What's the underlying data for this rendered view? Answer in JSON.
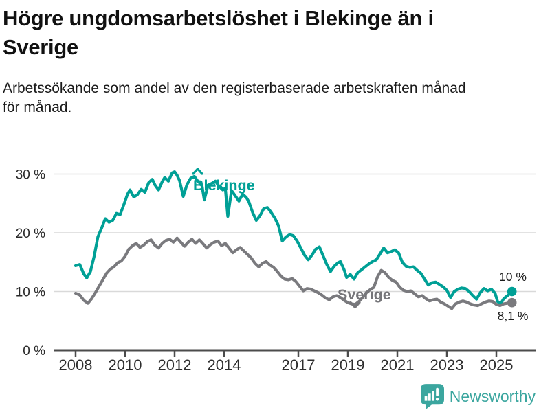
{
  "chart_data": {
    "type": "line",
    "title": "Högre ungdomsarbetslöshet i Blekinge än i Sverige",
    "subtitle": "Arbetssökande som andel av den registerbaserade arbetskraften månad för månad.",
    "unit": "%",
    "x_axis": {
      "ticks": [
        2008,
        2010,
        2012,
        2014,
        2017,
        2019,
        2021,
        2023,
        2025
      ],
      "range": [
        2007.1,
        2026.6
      ]
    },
    "y_axis": {
      "ticks": [
        {
          "value": 0,
          "label": "0 %"
        },
        {
          "value": 10,
          "label": "10 %"
        },
        {
          "value": 20,
          "label": "20 %"
        },
        {
          "value": 30,
          "label": "30 %"
        }
      ],
      "range": [
        0,
        32
      ],
      "grid": true
    },
    "legend_position": "inline-labels",
    "series": [
      {
        "name": "Blekinge",
        "color": "#00a096",
        "end_label": "10 %",
        "end_value": 10.0,
        "points": [
          [
            2008.0,
            14.4
          ],
          [
            2008.17,
            14.6
          ],
          [
            2008.33,
            13.0
          ],
          [
            2008.45,
            12.3
          ],
          [
            2008.6,
            13.4
          ],
          [
            2008.75,
            16.0
          ],
          [
            2008.9,
            19.3
          ],
          [
            2009.05,
            20.8
          ],
          [
            2009.2,
            22.4
          ],
          [
            2009.35,
            21.8
          ],
          [
            2009.5,
            22.1
          ],
          [
            2009.65,
            23.3
          ],
          [
            2009.8,
            23.1
          ],
          [
            2009.95,
            24.8
          ],
          [
            2010.1,
            26.6
          ],
          [
            2010.2,
            27.3
          ],
          [
            2010.35,
            26.1
          ],
          [
            2010.5,
            26.5
          ],
          [
            2010.65,
            27.4
          ],
          [
            2010.8,
            26.9
          ],
          [
            2010.95,
            28.5
          ],
          [
            2011.1,
            29.1
          ],
          [
            2011.2,
            28.2
          ],
          [
            2011.35,
            27.3
          ],
          [
            2011.5,
            28.7
          ],
          [
            2011.6,
            29.4
          ],
          [
            2011.75,
            28.8
          ],
          [
            2011.9,
            30.2
          ],
          [
            2012.0,
            30.4
          ],
          [
            2012.1,
            29.8
          ],
          [
            2012.2,
            28.9
          ],
          [
            2012.35,
            26.2
          ],
          [
            2012.5,
            28.2
          ],
          [
            2012.65,
            29.3
          ],
          [
            2012.8,
            29.6
          ],
          [
            2012.95,
            28.7
          ],
          [
            2013.1,
            28.2
          ],
          [
            2013.2,
            25.6
          ],
          [
            2013.35,
            28.1
          ],
          [
            2013.5,
            28.4
          ],
          [
            2013.65,
            28.8
          ],
          [
            2013.8,
            27.9
          ],
          [
            2013.95,
            27.3
          ],
          [
            2014.05,
            27.6
          ],
          [
            2014.15,
            22.8
          ],
          [
            2014.3,
            27.2
          ],
          [
            2014.45,
            26.3
          ],
          [
            2014.6,
            25.4
          ],
          [
            2014.75,
            26.6
          ],
          [
            2014.9,
            26.0
          ],
          [
            2015.0,
            25.3
          ],
          [
            2015.15,
            23.5
          ],
          [
            2015.3,
            22.1
          ],
          [
            2015.45,
            22.9
          ],
          [
            2015.6,
            24.1
          ],
          [
            2015.75,
            24.3
          ],
          [
            2015.9,
            23.5
          ],
          [
            2016.05,
            22.5
          ],
          [
            2016.2,
            21.2
          ],
          [
            2016.35,
            18.6
          ],
          [
            2016.5,
            19.3
          ],
          [
            2016.65,
            19.7
          ],
          [
            2016.8,
            19.5
          ],
          [
            2016.95,
            18.6
          ],
          [
            2017.1,
            17.4
          ],
          [
            2017.25,
            16.2
          ],
          [
            2017.4,
            15.4
          ],
          [
            2017.55,
            16.2
          ],
          [
            2017.7,
            17.2
          ],
          [
            2017.85,
            17.6
          ],
          [
            2018.0,
            16.1
          ],
          [
            2018.15,
            14.6
          ],
          [
            2018.3,
            13.4
          ],
          [
            2018.45,
            14.3
          ],
          [
            2018.6,
            14.9
          ],
          [
            2018.7,
            15.1
          ],
          [
            2018.85,
            13.7
          ],
          [
            2018.95,
            12.4
          ],
          [
            2019.1,
            12.9
          ],
          [
            2019.25,
            12.1
          ],
          [
            2019.4,
            13.2
          ],
          [
            2019.55,
            13.7
          ],
          [
            2019.7,
            14.2
          ],
          [
            2019.85,
            14.7
          ],
          [
            2020.0,
            15.1
          ],
          [
            2020.15,
            15.4
          ],
          [
            2020.3,
            16.4
          ],
          [
            2020.45,
            17.4
          ],
          [
            2020.6,
            16.6
          ],
          [
            2020.75,
            16.8
          ],
          [
            2020.9,
            17.1
          ],
          [
            2021.05,
            16.6
          ],
          [
            2021.2,
            15.0
          ],
          [
            2021.35,
            14.3
          ],
          [
            2021.5,
            14.1
          ],
          [
            2021.65,
            14.2
          ],
          [
            2021.8,
            13.6
          ],
          [
            2021.95,
            13.1
          ],
          [
            2022.1,
            12.1
          ],
          [
            2022.25,
            11.1
          ],
          [
            2022.4,
            11.5
          ],
          [
            2022.55,
            11.6
          ],
          [
            2022.7,
            11.2
          ],
          [
            2022.85,
            10.8
          ],
          [
            2023.0,
            10.2
          ],
          [
            2023.15,
            9.0
          ],
          [
            2023.3,
            10.0
          ],
          [
            2023.45,
            10.4
          ],
          [
            2023.6,
            10.6
          ],
          [
            2023.75,
            10.5
          ],
          [
            2023.9,
            10.0
          ],
          [
            2024.05,
            9.3
          ],
          [
            2024.2,
            8.7
          ],
          [
            2024.35,
            9.8
          ],
          [
            2024.5,
            10.5
          ],
          [
            2024.65,
            10.1
          ],
          [
            2024.8,
            10.4
          ],
          [
            2024.95,
            9.7
          ],
          [
            2025.05,
            8.3
          ],
          [
            2025.17,
            7.9
          ],
          [
            2025.3,
            8.8
          ],
          [
            2025.45,
            9.3
          ],
          [
            2025.63,
            10.0
          ]
        ]
      },
      {
        "name": "Sverige",
        "color": "#7a7a7e",
        "end_label": "8,1 %",
        "end_value": 8.1,
        "points": [
          [
            2008.0,
            9.7
          ],
          [
            2008.17,
            9.4
          ],
          [
            2008.33,
            8.5
          ],
          [
            2008.5,
            8.0
          ],
          [
            2008.65,
            8.8
          ],
          [
            2008.8,
            9.8
          ],
          [
            2008.95,
            10.9
          ],
          [
            2009.1,
            12.0
          ],
          [
            2009.25,
            13.1
          ],
          [
            2009.4,
            13.8
          ],
          [
            2009.55,
            14.2
          ],
          [
            2009.7,
            14.9
          ],
          [
            2009.85,
            15.2
          ],
          [
            2010.0,
            16.0
          ],
          [
            2010.15,
            17.2
          ],
          [
            2010.3,
            17.8
          ],
          [
            2010.45,
            18.2
          ],
          [
            2010.6,
            17.5
          ],
          [
            2010.75,
            17.9
          ],
          [
            2010.9,
            18.5
          ],
          [
            2011.05,
            18.8
          ],
          [
            2011.2,
            17.9
          ],
          [
            2011.35,
            17.4
          ],
          [
            2011.5,
            18.2
          ],
          [
            2011.65,
            18.7
          ],
          [
            2011.8,
            18.9
          ],
          [
            2011.95,
            18.4
          ],
          [
            2012.1,
            19.1
          ],
          [
            2012.25,
            18.4
          ],
          [
            2012.4,
            17.7
          ],
          [
            2012.55,
            18.4
          ],
          [
            2012.7,
            18.9
          ],
          [
            2012.85,
            18.2
          ],
          [
            2013.0,
            18.8
          ],
          [
            2013.15,
            18.1
          ],
          [
            2013.3,
            17.4
          ],
          [
            2013.45,
            18.0
          ],
          [
            2013.6,
            18.4
          ],
          [
            2013.75,
            18.6
          ],
          [
            2013.9,
            17.8
          ],
          [
            2014.05,
            18.2
          ],
          [
            2014.2,
            17.4
          ],
          [
            2014.35,
            16.6
          ],
          [
            2014.5,
            17.1
          ],
          [
            2014.65,
            17.5
          ],
          [
            2014.8,
            16.9
          ],
          [
            2014.95,
            16.3
          ],
          [
            2015.1,
            15.7
          ],
          [
            2015.25,
            14.8
          ],
          [
            2015.4,
            14.2
          ],
          [
            2015.55,
            14.8
          ],
          [
            2015.7,
            15.1
          ],
          [
            2015.85,
            14.5
          ],
          [
            2016.0,
            14.1
          ],
          [
            2016.15,
            13.4
          ],
          [
            2016.3,
            12.6
          ],
          [
            2016.45,
            12.1
          ],
          [
            2016.6,
            12.0
          ],
          [
            2016.75,
            12.2
          ],
          [
            2016.9,
            11.7
          ],
          [
            2017.05,
            10.9
          ],
          [
            2017.2,
            10.1
          ],
          [
            2017.35,
            10.5
          ],
          [
            2017.5,
            10.4
          ],
          [
            2017.65,
            10.1
          ],
          [
            2017.8,
            9.8
          ],
          [
            2017.95,
            9.4
          ],
          [
            2018.1,
            8.9
          ],
          [
            2018.25,
            8.6
          ],
          [
            2018.4,
            9.1
          ],
          [
            2018.55,
            9.3
          ],
          [
            2018.7,
            9.0
          ],
          [
            2018.85,
            8.5
          ],
          [
            2019.0,
            8.1
          ],
          [
            2019.15,
            7.9
          ],
          [
            2019.3,
            7.8
          ],
          [
            2019.45,
            8.3
          ],
          [
            2019.6,
            9.0
          ],
          [
            2019.75,
            9.8
          ],
          [
            2019.9,
            10.3
          ],
          [
            2020.05,
            10.7
          ],
          [
            2020.2,
            12.5
          ],
          [
            2020.35,
            13.6
          ],
          [
            2020.5,
            13.2
          ],
          [
            2020.65,
            12.4
          ],
          [
            2020.8,
            11.9
          ],
          [
            2020.95,
            11.6
          ],
          [
            2021.1,
            10.7
          ],
          [
            2021.25,
            10.2
          ],
          [
            2021.4,
            10.0
          ],
          [
            2021.55,
            10.1
          ],
          [
            2021.7,
            9.6
          ],
          [
            2021.85,
            9.1
          ],
          [
            2022.0,
            9.3
          ],
          [
            2022.15,
            8.8
          ],
          [
            2022.3,
            8.4
          ],
          [
            2022.45,
            8.6
          ],
          [
            2022.6,
            8.7
          ],
          [
            2022.75,
            8.2
          ],
          [
            2022.9,
            7.9
          ],
          [
            2023.05,
            7.5
          ],
          [
            2023.2,
            7.1
          ],
          [
            2023.35,
            7.9
          ],
          [
            2023.5,
            8.2
          ],
          [
            2023.65,
            8.4
          ],
          [
            2023.8,
            8.2
          ],
          [
            2023.95,
            7.9
          ],
          [
            2024.1,
            7.7
          ],
          [
            2024.25,
            7.6
          ],
          [
            2024.4,
            7.9
          ],
          [
            2024.55,
            8.2
          ],
          [
            2024.7,
            8.4
          ],
          [
            2024.85,
            8.3
          ],
          [
            2025.0,
            7.8
          ],
          [
            2025.15,
            7.6
          ],
          [
            2025.3,
            7.9
          ],
          [
            2025.45,
            8.0
          ],
          [
            2025.63,
            8.1
          ]
        ]
      }
    ]
  },
  "colors": {
    "axis": "#4b4b4b",
    "grid": "#d9d9d9",
    "tick_text": "#2e2e2e",
    "title_text": "#111111"
  },
  "footer": {
    "brand": "Newsworthy",
    "brand_color": "#3ba69f"
  }
}
